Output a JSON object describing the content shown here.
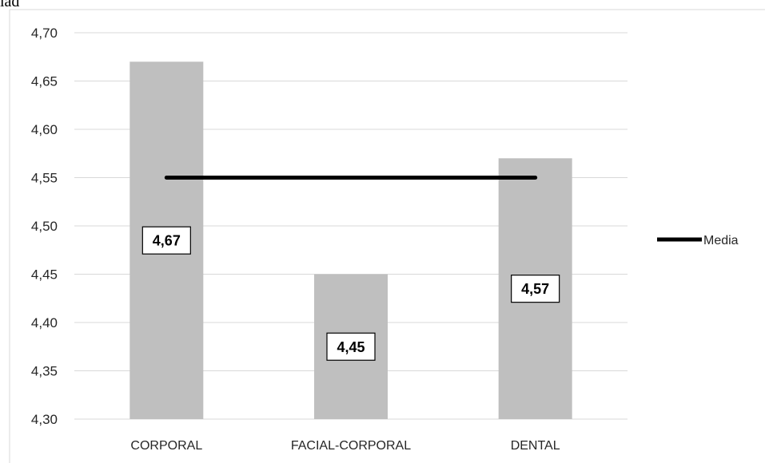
{
  "header": {
    "title_fragment": "lad"
  },
  "chart_data": {
    "type": "bar",
    "title": "",
    "xlabel": "",
    "ylabel": "",
    "categories": [
      "CORPORAL",
      "FACIAL-CORPORAL",
      "DENTAL"
    ],
    "values": [
      4.67,
      4.45,
      4.57
    ],
    "value_labels": [
      "4,67",
      "4,45",
      "4,57"
    ],
    "ylim": [
      4.3,
      4.7
    ],
    "y_ticks": [
      4.3,
      4.35,
      4.4,
      4.45,
      4.5,
      4.55,
      4.6,
      4.65,
      4.7
    ],
    "y_tick_labels": [
      "4,30",
      "4,35",
      "4,40",
      "4,45",
      "4,50",
      "4,55",
      "4,60",
      "4,65",
      "4,70"
    ],
    "grid": true,
    "bar_color": "#bfbfbf",
    "reference_line": {
      "name": "Media",
      "value": 4.55,
      "color": "#000000"
    },
    "legend": {
      "placement": "right",
      "entries": [
        "Media"
      ]
    }
  }
}
